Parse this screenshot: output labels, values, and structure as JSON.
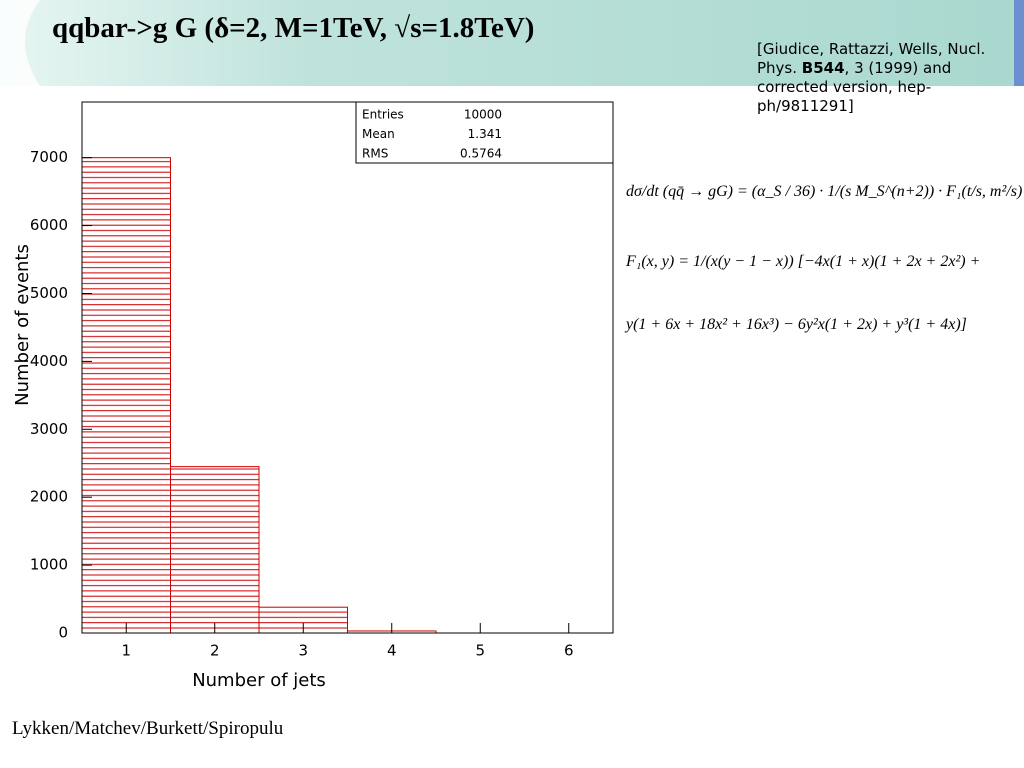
{
  "title": "qqbar->g G (δ=2, M=1TeV, √s=1.8TeV)",
  "reference": {
    "before": "[Giudice, Rattazzi, Wells, Nucl. Phys. ",
    "bold": "B544",
    "after": ", 3 (1999) and corrected version, hep-ph/9811291]"
  },
  "equations": [
    "dσ/dt (qq̄ → gG) = (α_S / 36) · 1/(s M_S^(n+2)) · F₁(t/s, m²/s)",
    "F₁(x, y) = 1/(x(y − 1 − x)) [−4x(1 + x)(1 + 2x + 2x²) +",
    "y(1 + 6x + 18x² + 16x³) − 6y²x(1 + 2x) + y³(1 + 4x)]"
  ],
  "footer": "Lykken/Matchev/Burkett/Spiropulu",
  "chart_data": {
    "type": "histogram",
    "x_label": "Number of jets",
    "y_label": "Number of events",
    "bins": [
      0.5,
      1.5,
      2.5,
      3.5,
      4.5,
      5.5,
      6.5
    ],
    "values": [
      7000,
      2450,
      380,
      30,
      0,
      0
    ],
    "color": "#cc0000",
    "xlim": [
      0.5,
      6.5
    ],
    "ylim": [
      0,
      7820
    ],
    "xticks": [
      1,
      2,
      3,
      4,
      5,
      6
    ],
    "yticks": [
      0,
      1000,
      2000,
      3000,
      4000,
      5000,
      6000,
      7000
    ],
    "stats": [
      {
        "label": "Entries",
        "value": "10000"
      },
      {
        "label": "Mean",
        "value": "1.341"
      },
      {
        "label": "RMS",
        "value": "0.5764"
      }
    ]
  }
}
